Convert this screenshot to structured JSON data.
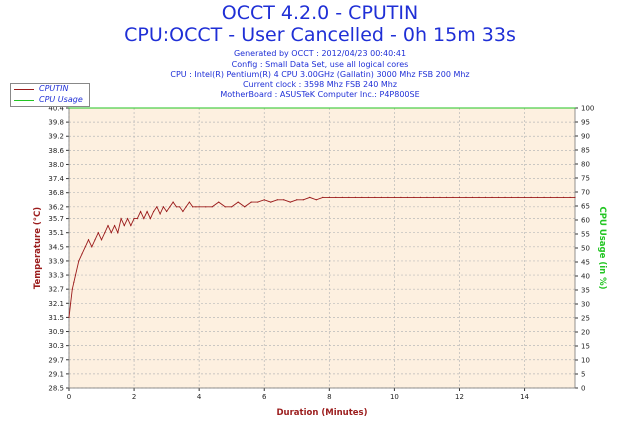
{
  "header": {
    "title": "OCCT 4.2.0 - CPUTIN",
    "subtitle": "CPU:OCCT - User Cancelled - 0h 15m 33s",
    "info": [
      "Generated by OCCT : 2012/04/23 00:40:41",
      "Config : Small Data Set, use all logical cores",
      "CPU : Intel(R) Pentium(R) 4 CPU 3.00GHz (Gallatin) 3000 Mhz FSB 200 Mhz",
      "Current clock : 3598 Mhz FSB 240 Mhz",
      "MotherBoard : ASUSTeK Computer Inc.: P4P800SE"
    ]
  },
  "legend": [
    {
      "label": "CPUTIN",
      "color": "#9b1c1c"
    },
    {
      "label": "CPU Usage",
      "color": "#22c522"
    }
  ],
  "chart_data": {
    "type": "line",
    "xlabel": "Duration (Minutes)",
    "ylabel": "Temperature (°C)",
    "y2label": "CPU Usage (in %)",
    "xlim": [
      0,
      15.55
    ],
    "ylim": [
      28.5,
      40.4
    ],
    "y2lim": [
      0,
      100
    ],
    "x_ticks": [
      0,
      2,
      4,
      6,
      8,
      10,
      12,
      14
    ],
    "y_ticks": [
      28.5,
      29.1,
      29.7,
      30.3,
      30.9,
      31.5,
      32.1,
      32.7,
      33.3,
      33.9,
      34.5,
      35.1,
      35.7,
      36.2,
      36.8,
      37.4,
      38.0,
      38.6,
      39.2,
      39.8,
      40.4
    ],
    "y2_ticks": [
      0,
      5,
      10,
      15,
      20,
      25,
      30,
      35,
      40,
      45,
      50,
      55,
      60,
      65,
      70,
      75,
      80,
      85,
      90,
      95,
      100
    ],
    "grid": true,
    "plot_background": "#fdf0e0",
    "series": [
      {
        "name": "CPUTIN",
        "color": "#9b1c1c",
        "x": [
          0,
          0.05,
          0.1,
          0.15,
          0.2,
          0.3,
          0.4,
          0.5,
          0.6,
          0.7,
          0.8,
          0.9,
          1.0,
          1.1,
          1.2,
          1.3,
          1.4,
          1.5,
          1.6,
          1.7,
          1.8,
          1.9,
          2.0,
          2.1,
          2.2,
          2.3,
          2.4,
          2.5,
          2.6,
          2.7,
          2.8,
          2.9,
          3.0,
          3.1,
          3.2,
          3.3,
          3.4,
          3.5,
          3.6,
          3.7,
          3.8,
          3.9,
          4.0,
          4.2,
          4.4,
          4.6,
          4.8,
          5.0,
          5.2,
          5.4,
          5.6,
          5.8,
          6.0,
          6.2,
          6.4,
          6.6,
          6.8,
          7.0,
          7.2,
          7.4,
          7.6,
          7.8,
          8.0,
          8.2,
          8.4,
          8.6,
          8.8,
          9.0,
          9.2,
          9.4,
          9.6,
          9.8,
          10.0,
          10.2,
          10.4,
          10.6,
          10.8,
          11.0,
          11.2,
          11.4,
          11.6,
          11.8,
          12.0,
          12.2,
          12.4,
          12.6,
          12.8,
          13.0,
          13.2,
          13.4,
          13.6,
          13.8,
          14.0,
          14.2,
          14.4,
          14.6,
          14.8,
          15.0,
          15.2,
          15.4,
          15.55
        ],
        "values": [
          31.5,
          32.1,
          32.7,
          33.0,
          33.3,
          33.9,
          34.2,
          34.5,
          34.8,
          34.5,
          34.8,
          35.1,
          34.8,
          35.1,
          35.4,
          35.1,
          35.4,
          35.1,
          35.7,
          35.4,
          35.7,
          35.4,
          35.7,
          35.7,
          36.0,
          35.7,
          36.0,
          35.7,
          36.0,
          36.2,
          35.9,
          36.2,
          36.0,
          36.2,
          36.4,
          36.2,
          36.2,
          36.0,
          36.2,
          36.4,
          36.2,
          36.2,
          36.2,
          36.2,
          36.2,
          36.4,
          36.2,
          36.2,
          36.4,
          36.2,
          36.4,
          36.4,
          36.5,
          36.4,
          36.5,
          36.5,
          36.4,
          36.5,
          36.5,
          36.6,
          36.5,
          36.6,
          36.6,
          36.6,
          36.6,
          36.6,
          36.6,
          36.6,
          36.6,
          36.6,
          36.6,
          36.6,
          36.6,
          36.6,
          36.6,
          36.6,
          36.6,
          36.6,
          36.6,
          36.6,
          36.6,
          36.6,
          36.6,
          36.6,
          36.6,
          36.6,
          36.6,
          36.6,
          36.6,
          36.6,
          36.6,
          36.6,
          36.6,
          36.6,
          36.6,
          36.6,
          36.6,
          36.6,
          36.6,
          36.6,
          36.6
        ]
      },
      {
        "name": "CPU Usage",
        "color": "#22c522",
        "x": [
          0,
          15.55
        ],
        "values": [
          100,
          100
        ]
      }
    ]
  }
}
